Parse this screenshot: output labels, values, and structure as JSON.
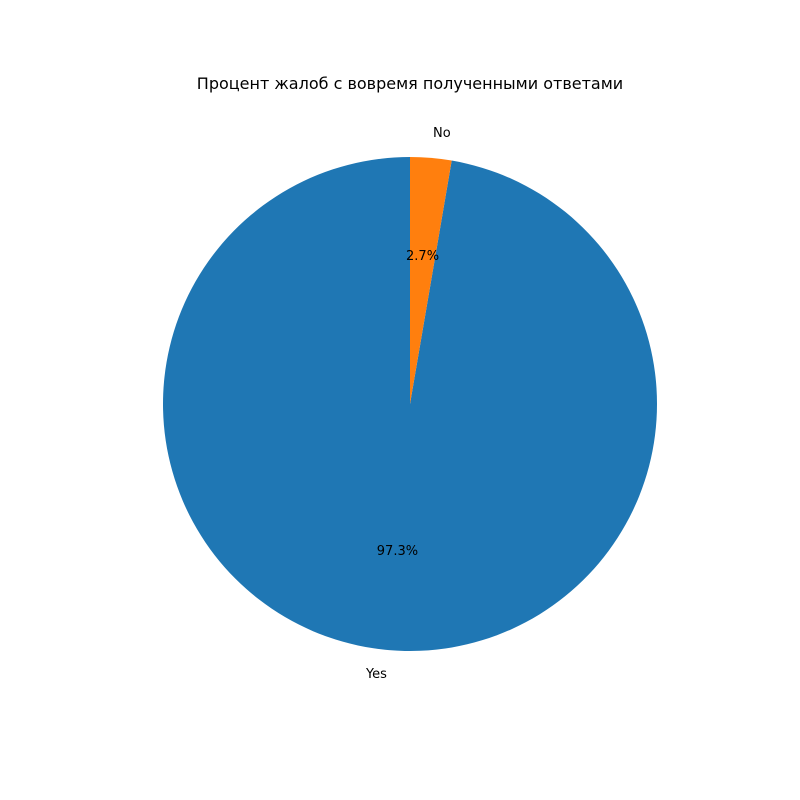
{
  "chart_data": {
    "type": "pie",
    "title": "Процент жалоб с вовремя полученными ответами",
    "categories": [
      "Yes",
      "No"
    ],
    "values": [
      97.3,
      2.7
    ],
    "percent_labels": [
      "97.3%",
      "2.7%"
    ],
    "colors": [
      "#1f77b4",
      "#ff7f0e"
    ],
    "start_angle_deg": 90,
    "direction": "counterclockwise"
  }
}
